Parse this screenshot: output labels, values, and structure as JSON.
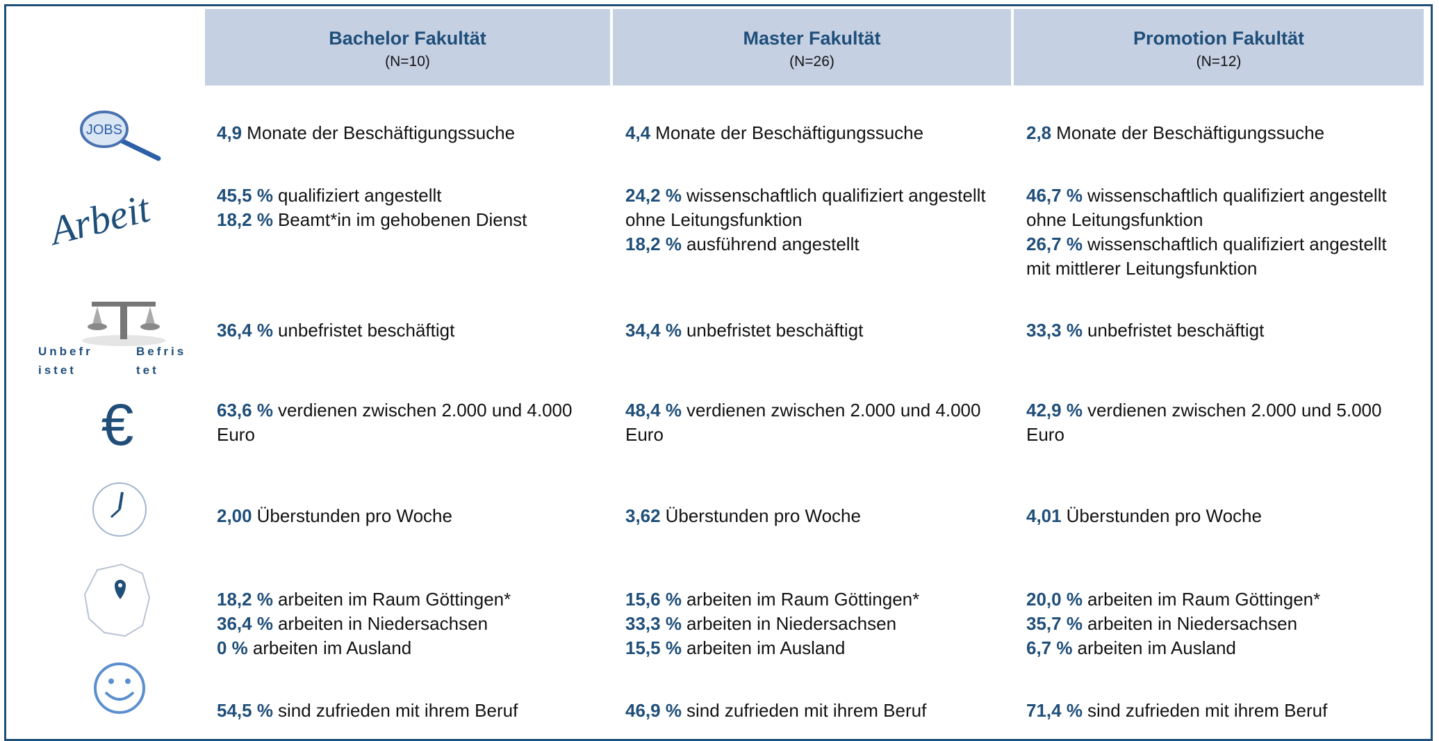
{
  "header": {
    "columns": [
      {
        "title": "Bachelor Fakultät",
        "n": "(N=10)"
      },
      {
        "title": "Master Fakultät",
        "n": "(N=26)"
      },
      {
        "title": "Promotion Fakultät",
        "n": "(N=12)"
      }
    ]
  },
  "rows": [
    {
      "icon_labels": [
        "JOBS"
      ],
      "cells": [
        [
          {
            "value": "4,9",
            "text": "Monate der Beschäftigungssuche"
          }
        ],
        [
          {
            "value": "4,4",
            "text": "Monate der Beschäftigungssuche"
          }
        ],
        [
          {
            "value": "2,8",
            "text": "Monate der Beschäftigungssuche"
          }
        ]
      ]
    },
    {
      "icon_labels": [
        "Arbeit"
      ],
      "cells": [
        [
          {
            "value": "45,5 %",
            "text": "qualifiziert angestellt"
          },
          {
            "value": "18,2 %",
            "text": "Beamt*in im gehobenen Dienst"
          }
        ],
        [
          {
            "value": "24,2 %",
            "text": "wissenschaftlich qualifiziert angestellt"
          },
          {
            "text": "ohne Leitungsfunktion"
          },
          {
            "value": "18,2 %",
            "text": "ausführend angestellt"
          }
        ],
        [
          {
            "value": "46,7 %",
            "text": "wissenschaftlich qualifiziert angestellt"
          },
          {
            "text": "ohne Leitungsfunktion"
          },
          {
            "value": "26,7 %",
            "text": "wissenschaftlich qualifiziert angestellt"
          },
          {
            "text": "mit mittlerer Leitungsfunktion"
          }
        ]
      ]
    },
    {
      "icon_labels": [
        "Unbefristet",
        "Befristet"
      ],
      "cells": [
        [
          {
            "value": "36,4 %",
            "text": "unbefristet beschäftigt"
          }
        ],
        [
          {
            "value": "34,4 %",
            "text": "unbefristet beschäftigt"
          }
        ],
        [
          {
            "value": "33,3 %",
            "text": "unbefristet beschäftigt"
          }
        ]
      ]
    },
    {
      "icon_labels": [
        "€"
      ],
      "cells": [
        [
          {
            "value": "63,6 %",
            "text": "verdienen zwischen 2.000 und 4.000"
          },
          {
            "text": "Euro"
          }
        ],
        [
          {
            "value": "48,4 %",
            "text": "verdienen zwischen 2.000 und 4.000"
          },
          {
            "text": "Euro"
          }
        ],
        [
          {
            "value": "42,9 %",
            "text": "verdienen zwischen 2.000 und 5.000"
          },
          {
            "text": "Euro"
          }
        ]
      ]
    },
    {
      "cells": [
        [
          {
            "value": "2,00",
            "text": "Überstunden pro Woche"
          }
        ],
        [
          {
            "value": "3,62",
            "text": "Überstunden pro Woche"
          }
        ],
        [
          {
            "value": "4,01",
            "text": "Überstunden pro Woche"
          }
        ]
      ]
    },
    {
      "cells": [
        [
          {
            "value": "18,2 %",
            "text": "arbeiten im Raum Göttingen*"
          },
          {
            "value": "36,4 %",
            "text": "arbeiten in Niedersachsen"
          },
          {
            "value": "0 %",
            "text": "arbeiten im Ausland"
          }
        ],
        [
          {
            "value": "15,6 %",
            "text": "arbeiten im Raum Göttingen*"
          },
          {
            "value": "33,3 %",
            "text": "arbeiten in Niedersachsen"
          },
          {
            "value": "15,5 %",
            "text": "arbeiten im Ausland"
          }
        ],
        [
          {
            "value": "20,0 %",
            "text": "arbeiten im Raum Göttingen*"
          },
          {
            "value": "35,7 %",
            "text": "arbeiten in Niedersachsen"
          },
          {
            "value": "6,7 %",
            "text": "arbeiten im Ausland"
          }
        ]
      ]
    },
    {
      "cells": [
        [
          {
            "value": "54,5 %",
            "text": "sind zufrieden mit ihrem Beruf"
          }
        ],
        [
          {
            "value": "46,9 %",
            "text": "sind zufrieden mit ihrem Beruf"
          }
        ],
        [
          {
            "value": "71,4 %",
            "text": "sind zufrieden mit ihrem Beruf"
          }
        ]
      ]
    }
  ]
}
